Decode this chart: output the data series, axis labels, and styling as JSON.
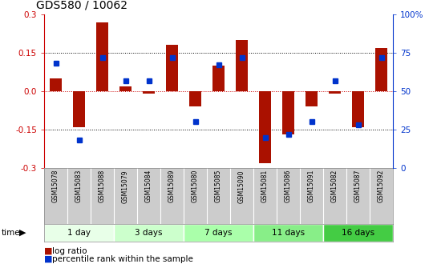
{
  "title": "GDS580 / 10062",
  "samples": [
    "GSM15078",
    "GSM15083",
    "GSM15088",
    "GSM15079",
    "GSM15084",
    "GSM15089",
    "GSM15080",
    "GSM15085",
    "GSM15090",
    "GSM15081",
    "GSM15086",
    "GSM15091",
    "GSM15082",
    "GSM15087",
    "GSM15092"
  ],
  "log_ratio": [
    0.05,
    -0.14,
    0.27,
    0.02,
    -0.01,
    0.18,
    -0.06,
    0.1,
    0.2,
    -0.28,
    -0.17,
    -0.06,
    -0.01,
    -0.14,
    0.17
  ],
  "percentile": [
    0.68,
    0.18,
    0.72,
    0.57,
    0.57,
    0.72,
    0.3,
    0.67,
    0.72,
    0.2,
    0.22,
    0.3,
    0.57,
    0.28,
    0.72
  ],
  "groups": [
    {
      "label": "1 day",
      "count": 3
    },
    {
      "label": "3 days",
      "count": 3
    },
    {
      "label": "7 days",
      "count": 3
    },
    {
      "label": "11 days",
      "count": 3
    },
    {
      "label": "16 days",
      "count": 3
    }
  ],
  "bar_color": "#aa1100",
  "dot_color": "#0033cc",
  "ylim": [
    -0.3,
    0.3
  ],
  "yticks_left": [
    -0.3,
    -0.15,
    0.0,
    0.15,
    0.3
  ],
  "yticks_right": [
    0,
    25,
    50,
    75,
    100
  ],
  "dotted_lines": [
    -0.15,
    0.0,
    0.15
  ],
  "background_color": "#ffffff",
  "tick_label_color_left": "#cc0000",
  "tick_label_color_right": "#0033cc",
  "group_colors": [
    "#e8ffe8",
    "#ccffcc",
    "#aaffaa",
    "#88ee88",
    "#44cc44"
  ],
  "sample_bg": "#cccccc"
}
